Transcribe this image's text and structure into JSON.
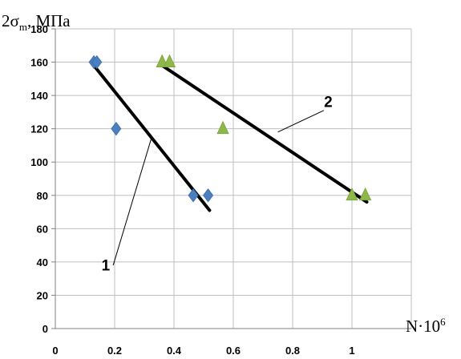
{
  "chart_data": {
    "type": "scatter",
    "ylabel_prefix": "2σ",
    "ylabel_sub": "m",
    "ylabel_suffix": ", МПа",
    "xlabel_base": "N·10",
    "xlabel_exp": "6",
    "xlim": [
      0,
      1.2
    ],
    "ylim": [
      0,
      180
    ],
    "x_ticks": [
      0,
      0.2,
      0.4,
      0.6,
      0.8,
      1
    ],
    "x_tick_labels": [
      "0",
      "0.2",
      "0.4",
      "0.6",
      "0.8",
      "1"
    ],
    "y_ticks": [
      0,
      20,
      40,
      60,
      80,
      100,
      120,
      140,
      160,
      180
    ],
    "y_tick_labels": [
      "0",
      "20",
      "40",
      "60",
      "80",
      "100",
      "120",
      "140",
      "160",
      "180"
    ],
    "grid": true,
    "series": [
      {
        "marker": "diamond",
        "color": "#4a7fc0",
        "points": [
          [
            0.13,
            160
          ],
          [
            0.14,
            160
          ],
          [
            0.205,
            120
          ],
          [
            0.465,
            80
          ],
          [
            0.515,
            80
          ]
        ],
        "fit_line": [
          [
            0.13,
            158
          ],
          [
            0.52,
            71
          ]
        ]
      },
      {
        "marker": "triangle",
        "color": "#8fb84a",
        "points": [
          [
            0.36,
            160
          ],
          [
            0.385,
            160
          ],
          [
            0.565,
            120
          ],
          [
            1.0,
            80
          ],
          [
            1.045,
            80
          ]
        ],
        "fit_line": [
          [
            0.36,
            158
          ],
          [
            1.05,
            76
          ]
        ]
      }
    ],
    "annotations": [
      {
        "text": "1",
        "label_at": [
          0.17,
          35
        ],
        "leader_from": [
          0.195,
          38
        ],
        "leader_to": [
          0.325,
          115
        ]
      },
      {
        "text": "2",
        "label_at": [
          0.92,
          133
        ],
        "leader_from": [
          0.905,
          131
        ],
        "leader_to": [
          0.75,
          118
        ]
      }
    ]
  }
}
